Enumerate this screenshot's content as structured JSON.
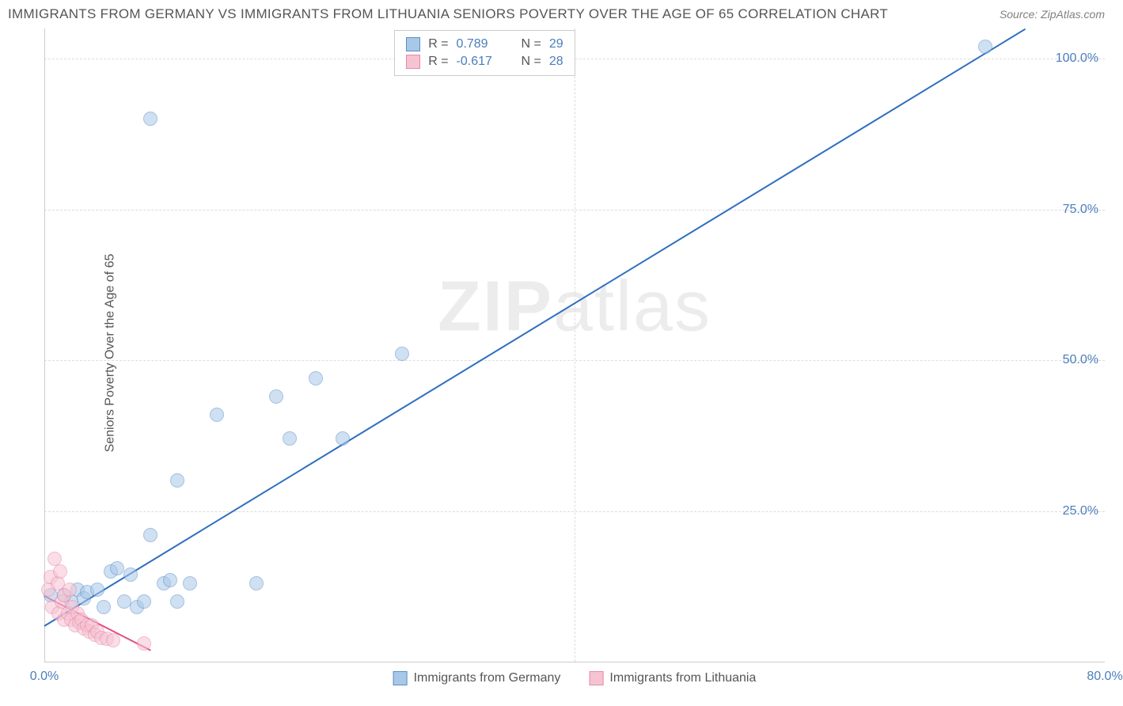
{
  "header": {
    "title": "IMMIGRANTS FROM GERMANY VS IMMIGRANTS FROM LITHUANIA SENIORS POVERTY OVER THE AGE OF 65 CORRELATION CHART",
    "source": "Source: ZipAtlas.com"
  },
  "y_axis_label": "Seniors Poverty Over the Age of 65",
  "watermark": {
    "part1": "ZIP",
    "part2": "atlas"
  },
  "chart": {
    "type": "scatter",
    "background_color": "#ffffff",
    "grid_color": "#dddddd",
    "axis_color": "#cccccc",
    "tick_color": "#4a7ebb",
    "xlim": [
      0,
      80
    ],
    "ylim": [
      0,
      105
    ],
    "xticks": [
      {
        "v": 0,
        "l": "0.0%"
      },
      {
        "v": 80,
        "l": "80.0%"
      }
    ],
    "yticks": [
      {
        "v": 25,
        "l": "25.0%"
      },
      {
        "v": 50,
        "l": "50.0%"
      },
      {
        "v": 75,
        "l": "75.0%"
      },
      {
        "v": 100,
        "l": "100.0%"
      }
    ],
    "x_gridlines": [
      40
    ],
    "marker_radius": 9,
    "marker_opacity": 0.55,
    "series": [
      {
        "name": "Immigrants from Germany",
        "fill": "#a8c8e8",
        "stroke": "#5b8fc7",
        "line_color": "#2e6fc0",
        "line_width": 2,
        "trend": {
          "x1": 0,
          "y1": 6,
          "x2": 74,
          "y2": 105
        },
        "R": "0.789",
        "N": "29",
        "points": [
          {
            "x": 0.5,
            "y": 11
          },
          {
            "x": 1.5,
            "y": 11
          },
          {
            "x": 2.0,
            "y": 10
          },
          {
            "x": 2.5,
            "y": 12
          },
          {
            "x": 3.0,
            "y": 10.5
          },
          {
            "x": 3.2,
            "y": 11.5
          },
          {
            "x": 4.0,
            "y": 12
          },
          {
            "x": 4.5,
            "y": 9
          },
          {
            "x": 5.0,
            "y": 15
          },
          {
            "x": 5.5,
            "y": 15.5
          },
          {
            "x": 6.0,
            "y": 10
          },
          {
            "x": 6.5,
            "y": 14.5
          },
          {
            "x": 7.0,
            "y": 9
          },
          {
            "x": 7.5,
            "y": 10
          },
          {
            "x": 8.0,
            "y": 21
          },
          {
            "x": 9.0,
            "y": 13
          },
          {
            "x": 9.5,
            "y": 13.5
          },
          {
            "x": 10.0,
            "y": 10
          },
          {
            "x": 11.0,
            "y": 13
          },
          {
            "x": 8.0,
            "y": 90
          },
          {
            "x": 10.0,
            "y": 30
          },
          {
            "x": 13.0,
            "y": 41
          },
          {
            "x": 16.0,
            "y": 13
          },
          {
            "x": 17.5,
            "y": 44
          },
          {
            "x": 18.5,
            "y": 37
          },
          {
            "x": 20.5,
            "y": 47
          },
          {
            "x": 22.5,
            "y": 37
          },
          {
            "x": 27.0,
            "y": 51
          },
          {
            "x": 71.0,
            "y": 102
          }
        ]
      },
      {
        "name": "Immigrants from Lithuania",
        "fill": "#f6c3d3",
        "stroke": "#e88aa8",
        "line_color": "#e05080",
        "line_width": 2,
        "trend": {
          "x1": 0,
          "y1": 11,
          "x2": 8,
          "y2": 2
        },
        "R": "-0.617",
        "N": "28",
        "points": [
          {
            "x": 0.3,
            "y": 12
          },
          {
            "x": 0.5,
            "y": 14
          },
          {
            "x": 0.6,
            "y": 9
          },
          {
            "x": 0.8,
            "y": 17
          },
          {
            "x": 1.0,
            "y": 13
          },
          {
            "x": 1.1,
            "y": 8
          },
          {
            "x": 1.2,
            "y": 15
          },
          {
            "x": 1.3,
            "y": 10
          },
          {
            "x": 1.5,
            "y": 7
          },
          {
            "x": 1.5,
            "y": 11
          },
          {
            "x": 1.8,
            "y": 8
          },
          {
            "x": 1.9,
            "y": 12
          },
          {
            "x": 2.0,
            "y": 7
          },
          {
            "x": 2.1,
            "y": 9
          },
          {
            "x": 2.3,
            "y": 6
          },
          {
            "x": 2.5,
            "y": 8
          },
          {
            "x": 2.6,
            "y": 6.5
          },
          {
            "x": 2.8,
            "y": 7
          },
          {
            "x": 3.0,
            "y": 5.5
          },
          {
            "x": 3.2,
            "y": 6
          },
          {
            "x": 3.4,
            "y": 5
          },
          {
            "x": 3.6,
            "y": 6
          },
          {
            "x": 3.8,
            "y": 4.5
          },
          {
            "x": 4.0,
            "y": 5
          },
          {
            "x": 4.3,
            "y": 4
          },
          {
            "x": 4.7,
            "y": 3.8
          },
          {
            "x": 5.2,
            "y": 3.5
          },
          {
            "x": 7.5,
            "y": 3
          }
        ]
      }
    ]
  },
  "legend_top": {
    "prefix_R": "R =",
    "prefix_N": "N ="
  },
  "legend_bottom": [
    {
      "label": "Immigrants from Germany",
      "fill": "#a8c8e8",
      "stroke": "#5b8fc7"
    },
    {
      "label": "Immigrants from Lithuania",
      "fill": "#f6c3d3",
      "stroke": "#e88aa8"
    }
  ]
}
